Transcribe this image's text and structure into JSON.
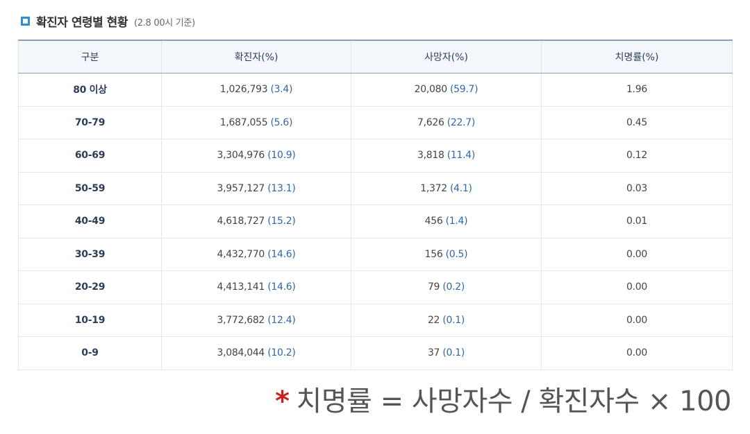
{
  "header": {
    "title": "확진자 연령별 현황",
    "subtitle": "(2.8 00시 기준)"
  },
  "table": {
    "columns": [
      "구분",
      "확진자(%)",
      "사망자(%)",
      "치명률(%)"
    ],
    "rows": [
      {
        "age": "80 이상",
        "confirmed": "1,026,793",
        "confirmed_pct": "(3.4)",
        "deaths": "20,080",
        "deaths_pct": "(59.7)",
        "fatality": "1.96"
      },
      {
        "age": "70-79",
        "confirmed": "1,687,055",
        "confirmed_pct": "(5.6)",
        "deaths": "7,626",
        "deaths_pct": "(22.7)",
        "fatality": "0.45"
      },
      {
        "age": "60-69",
        "confirmed": "3,304,976",
        "confirmed_pct": "(10.9)",
        "deaths": "3,818",
        "deaths_pct": "(11.4)",
        "fatality": "0.12"
      },
      {
        "age": "50-59",
        "confirmed": "3,957,127",
        "confirmed_pct": "(13.1)",
        "deaths": "1,372",
        "deaths_pct": "(4.1)",
        "fatality": "0.03"
      },
      {
        "age": "40-49",
        "confirmed": "4,618,727",
        "confirmed_pct": "(15.2)",
        "deaths": "456",
        "deaths_pct": "(1.4)",
        "fatality": "0.01"
      },
      {
        "age": "30-39",
        "confirmed": "4,432,770",
        "confirmed_pct": "(14.6)",
        "deaths": "156",
        "deaths_pct": "(0.5)",
        "fatality": "0.00"
      },
      {
        "age": "20-29",
        "confirmed": "4,413,141",
        "confirmed_pct": "(14.6)",
        "deaths": "79",
        "deaths_pct": "(0.2)",
        "fatality": "0.00"
      },
      {
        "age": "10-19",
        "confirmed": "3,772,682",
        "confirmed_pct": "(12.4)",
        "deaths": "22",
        "deaths_pct": "(0.1)",
        "fatality": "0.00"
      },
      {
        "age": "0-9",
        "confirmed": "3,084,044",
        "confirmed_pct": "(10.2)",
        "deaths": "37",
        "deaths_pct": "(0.1)",
        "fatality": "0.00"
      }
    ]
  },
  "footnote": {
    "marker": "*",
    "text": "치명률 = 사망자수 / 확진자수 × 100"
  },
  "colors": {
    "accent_blue": "#2e8fd4",
    "value_blue": "#2f66a8",
    "marker_red": "#cc1f1f"
  },
  "icons": {
    "header_bullet": "square-bullet-icon"
  }
}
